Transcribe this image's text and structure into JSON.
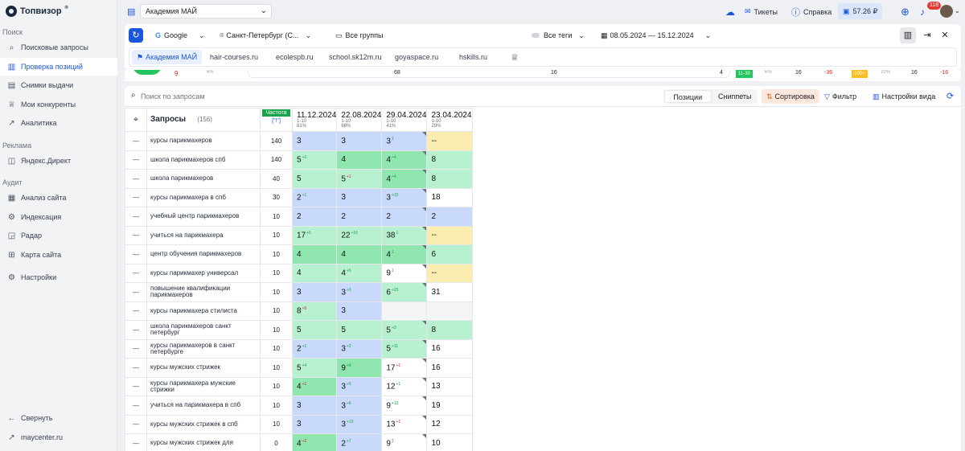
{
  "app": {
    "logo": "Топвизор",
    "logo_mark": "®"
  },
  "sidebar": {
    "sections": [
      {
        "title": "Поиск",
        "items": [
          {
            "label": "Поисковые запросы",
            "icon": "search-icon"
          },
          {
            "label": "Проверка позиций",
            "icon": "bar-chart-icon",
            "active": true
          },
          {
            "label": "Снимки выдачи",
            "icon": "snapshot-icon"
          },
          {
            "label": "Мои конкуренты",
            "icon": "trophy-icon"
          },
          {
            "label": "Аналитика",
            "icon": "line-chart-icon"
          }
        ]
      },
      {
        "title": "Реклама",
        "items": [
          {
            "label": "Яндекс.Директ",
            "icon": "direct-icon"
          }
        ]
      },
      {
        "title": "Аудит",
        "items": [
          {
            "label": "Анализ сайта",
            "icon": "site-analysis-icon"
          },
          {
            "label": "Индексация",
            "icon": "indexing-icon"
          },
          {
            "label": "Радар",
            "icon": "radar-icon"
          },
          {
            "label": "Карта сайта",
            "icon": "sitemap-icon"
          }
        ]
      }
    ],
    "settings": "Настройки",
    "collapse": "Свернуть",
    "footer_link": "maycenter.ru"
  },
  "topbar": {
    "project": "Академия МАЙ",
    "tickets": "Тикеты",
    "help": "Справка",
    "balance": "57.26 ₽",
    "notifications": "118"
  },
  "toolbar": {
    "engine": "Google",
    "region": "Санкт-Петербург (С...",
    "groups": "Все группы",
    "tags": "Все теги",
    "date_range": "08.05.2024 — 15.12.2024",
    "competitors": [
      "Академия МАЙ",
      "hair-courses.ru",
      "ecolespb.ru",
      "school.sk12m.ru",
      "goyaspace.ru",
      "hskills.ru"
    ]
  },
  "summary_strip": {
    "values": [
      "9",
      "6%",
      "68",
      "16",
      "4",
      "11-30",
      "6%",
      "16",
      "-36",
      "100+",
      "10%",
      "16",
      "-16"
    ]
  },
  "main": {
    "search_placeholder": "Поиск по запросам",
    "view_tabs": [
      "Позиции",
      "Сниппеты"
    ],
    "sort": "Сортировка",
    "filter": "Фильтр",
    "view_settings": "Настройки вида",
    "col_queries": "Запросы",
    "queries_count": "(156)",
    "col_freq": "Частота",
    "col_freq_sub": "[\"!\"]",
    "dates": [
      {
        "date": "11.12.2024",
        "range": "1-10",
        "pct": "81%"
      },
      {
        "date": "22.08.2024",
        "range": "1-10",
        "pct": "68%"
      },
      {
        "date": "29.04.2024",
        "range": "1-10",
        "pct": "41%"
      },
      {
        "date": "23.04.2024",
        "range": "1-10",
        "pct": "29%"
      }
    ]
  },
  "rows": [
    {
      "q": "курсы парикмахеров",
      "f": "140",
      "p": [
        [
          "3",
          "",
          "",
          "blue"
        ],
        [
          "3",
          "",
          "",
          "blue"
        ],
        [
          "3",
          "1",
          "",
          "blue"
        ],
        [
          "--",
          "",
          "",
          "yellow"
        ]
      ]
    },
    {
      "q": "школа парикмахеров спб",
      "f": "140",
      "p": [
        [
          "5",
          "+1",
          "",
          "green"
        ],
        [
          "4",
          "",
          "",
          "dgreen"
        ],
        [
          "4",
          "+4",
          "",
          "dgreen"
        ],
        [
          "8",
          "",
          "",
          "green"
        ]
      ]
    },
    {
      "q": "школа парикмахеров",
      "f": "40",
      "p": [
        [
          "5",
          "",
          "",
          "green"
        ],
        [
          "5",
          "+1",
          "neg",
          "green"
        ],
        [
          "4",
          "+4",
          "",
          "dgreen"
        ],
        [
          "8",
          "",
          "",
          "green"
        ]
      ]
    },
    {
      "q": "курсы парикмахера в спб",
      "f": "30",
      "p": [
        [
          "2",
          "+1",
          "",
          "blue"
        ],
        [
          "3",
          "",
          "",
          "blue"
        ],
        [
          "3",
          "+15",
          "",
          "blue"
        ],
        [
          "18",
          "",
          "",
          "white"
        ]
      ]
    },
    {
      "q": "учебный центр парикмахеров",
      "f": "10",
      "p": [
        [
          "2",
          "",
          "",
          "blue"
        ],
        [
          "2",
          "",
          "",
          "blue"
        ],
        [
          "2",
          "",
          "",
          "blue"
        ],
        [
          "2",
          "",
          "",
          "blue"
        ]
      ]
    },
    {
      "q": "учиться на парикмахера",
      "f": "10",
      "p": [
        [
          "17",
          "+5",
          "",
          "green"
        ],
        [
          "22",
          "+16",
          "",
          "green"
        ],
        [
          "38",
          "1",
          "",
          "green"
        ],
        [
          "--",
          "",
          "",
          "yellow"
        ]
      ]
    },
    {
      "q": "центр обучения парикмахеров",
      "f": "10",
      "p": [
        [
          "4",
          "",
          "",
          "dgreen"
        ],
        [
          "4",
          "",
          "",
          "dgreen"
        ],
        [
          "4",
          "1",
          "",
          "dgreen"
        ],
        [
          "6",
          "",
          "",
          "green"
        ]
      ]
    },
    {
      "q": "курсы парикмахер универсал",
      "f": "10",
      "p": [
        [
          "4",
          "",
          "",
          "green"
        ],
        [
          "4",
          "+5",
          "",
          "green"
        ],
        [
          "9",
          "1",
          "",
          "white"
        ],
        [
          "--",
          "",
          "",
          "yellow"
        ]
      ]
    },
    {
      "q": "повышение квалификации парикмахеров",
      "f": "10",
      "p": [
        [
          "3",
          "",
          "",
          "blue"
        ],
        [
          "3",
          "+3",
          "",
          "blue"
        ],
        [
          "6",
          "+25",
          "",
          "green"
        ],
        [
          "31",
          "",
          "",
          "white"
        ]
      ]
    },
    {
      "q": "курсы парикмахера стилиста",
      "f": "10",
      "p": [
        [
          "8",
          "+5",
          "neg",
          "green"
        ],
        [
          "3",
          "",
          "",
          "blue"
        ],
        [
          "",
          "",
          "",
          "gray"
        ],
        [
          "",
          "",
          "",
          "gray"
        ]
      ]
    },
    {
      "q": "школа парикмахеров санкт петербург",
      "f": "10",
      "p": [
        [
          "5",
          "",
          "",
          "green"
        ],
        [
          "5",
          "",
          "",
          "green"
        ],
        [
          "5",
          "+3",
          "",
          "green"
        ],
        [
          "8",
          "",
          "",
          "green"
        ]
      ]
    },
    {
      "q": "курсы парикмахеров в санкт петербурге",
      "f": "10",
      "p": [
        [
          "2",
          "+1",
          "",
          "blue"
        ],
        [
          "3",
          "+2",
          "",
          "blue"
        ],
        [
          "5",
          "+11",
          "",
          "green"
        ],
        [
          "16",
          "",
          "",
          "white"
        ]
      ]
    },
    {
      "q": "курсы мужских стрижек",
      "f": "10",
      "p": [
        [
          "5",
          "+4",
          "",
          "green"
        ],
        [
          "9",
          "+8",
          "",
          "dgreen"
        ],
        [
          "17",
          "+1",
          "neg",
          "white"
        ],
        [
          "16",
          "",
          "",
          "white"
        ]
      ]
    },
    {
      "q": "курсы парикмахера мужские стрижки",
      "f": "10",
      "p": [
        [
          "4",
          "+1",
          "neg",
          "dgreen"
        ],
        [
          "3",
          "+9",
          "",
          "blue"
        ],
        [
          "12",
          "+1",
          "",
          "white"
        ],
        [
          "13",
          "",
          "",
          "white"
        ]
      ]
    },
    {
      "q": "учиться на парикмахера в спб",
      "f": "10",
      "p": [
        [
          "3",
          "",
          "",
          "blue"
        ],
        [
          "3",
          "+6",
          "",
          "blue"
        ],
        [
          "9",
          "+10",
          "",
          "white"
        ],
        [
          "19",
          "",
          "",
          "white"
        ]
      ]
    },
    {
      "q": "курсы мужских стрижек в спб",
      "f": "10",
      "p": [
        [
          "3",
          "",
          "",
          "blue"
        ],
        [
          "3",
          "+10",
          "",
          "blue"
        ],
        [
          "13",
          "+1",
          "neg",
          "white"
        ],
        [
          "12",
          "",
          "",
          "white"
        ]
      ]
    },
    {
      "q": "курсы мужских стрижек для",
      "f": "0",
      "p": [
        [
          "4",
          "+2",
          "neg",
          "dgreen"
        ],
        [
          "2",
          "+7",
          "",
          "blue"
        ],
        [
          "9",
          "1",
          "",
          "white"
        ],
        [
          "10",
          "",
          "",
          "white"
        ]
      ]
    }
  ]
}
